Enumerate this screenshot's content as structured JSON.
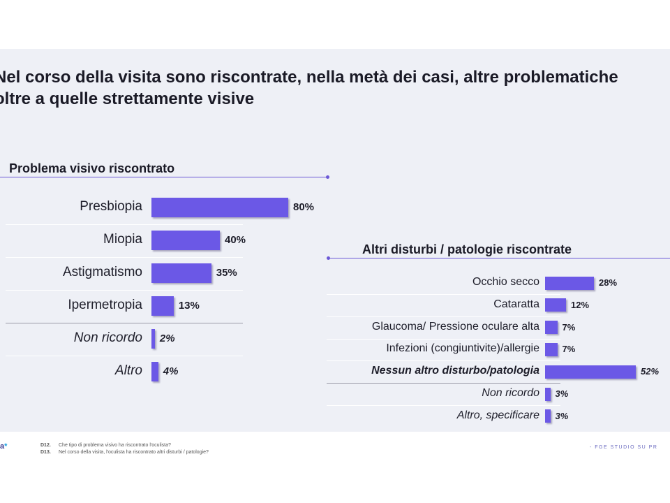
{
  "title_lines": [
    "Nel corso della visita sono riscontrate, nella metà dei casi, altre problematiche",
    "oltre a quelle strettamente visive"
  ],
  "chart_data": [
    {
      "type": "bar",
      "orientation": "horizontal",
      "title": "Problema visivo riscontrato",
      "categories": [
        "Presbiopia",
        "Miopia",
        "Astigmatismo",
        "Ipermetropia",
        "Non  ricordo",
        "Altro"
      ],
      "values": [
        80,
        40,
        35,
        13,
        2,
        4
      ],
      "value_labels": [
        "80%",
        "40%",
        "35%",
        "13%",
        "2%",
        "4%"
      ],
      "italic_categories": [
        "Non  ricordo",
        "Altro"
      ],
      "unit": "%",
      "bar_color": "#6b58e6"
    },
    {
      "type": "bar",
      "orientation": "horizontal",
      "title": "Altri disturbi / patologie riscontrate",
      "categories": [
        "Occhio secco",
        "Cataratta",
        "Glaucoma/ Pressione oculare alta",
        "Infezioni (congiuntivite)/allergie",
        "Nessun altro disturbo/patologia",
        "Non ricordo",
        "Altro, specificare"
      ],
      "values": [
        28,
        12,
        7,
        7,
        52,
        3,
        3
      ],
      "value_labels": [
        "28%",
        "12%",
        "7%",
        "7%",
        "52%",
        "3%",
        "3%"
      ],
      "italic_categories": [
        "Nessun altro disturbo/patologia",
        "Non ricordo",
        "Altro, specificare"
      ],
      "unit": "%",
      "bar_color": "#6b58e6"
    }
  ],
  "footer": {
    "logo_text": "a",
    "notes": [
      {
        "code": "D12.",
        "text": "Che tipo di problema visivo ha riscontrato l'oculista?"
      },
      {
        "code": "D13.",
        "text": "Nel corso della visita, l'oculista ha riscontrato altri disturbi / patologie?"
      }
    ],
    "brand": "- FGE STUDIO SU PR"
  }
}
